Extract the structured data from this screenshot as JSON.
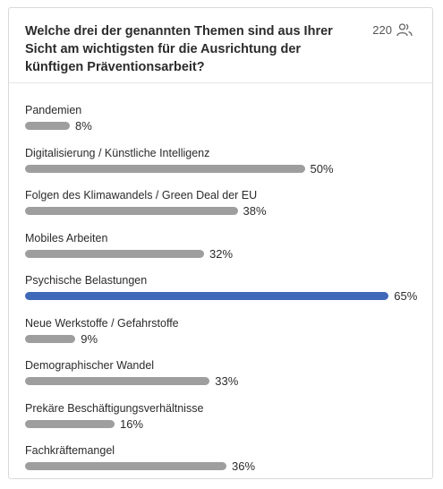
{
  "poll": {
    "question": "Welche drei der genannten Themen sind aus Ihrer Sicht am wichtigsten für die Ausrichtung der künftigen Präventionsarbeit?",
    "respondent_count": "220",
    "count_icon": "people-icon"
  },
  "colors": {
    "bar_default": "#9e9e9e",
    "bar_highlight": "#3f69b8"
  },
  "chart_data": {
    "type": "bar",
    "orientation": "horizontal",
    "categories": [
      "Pandemien",
      "Digitalisierung / Künstliche Intelligenz",
      "Folgen des Klimawandels / Green Deal der EU",
      "Mobiles Arbeiten",
      "Psychische Belastungen",
      "Neue Werkstoffe / Gefahrstoffe",
      "Demographischer Wandel",
      "Prekäre Beschäftigungsverhältnisse",
      "Fachkräftemangel"
    ],
    "values": [
      8,
      50,
      38,
      32,
      65,
      9,
      33,
      16,
      36
    ],
    "value_labels": [
      "8%",
      "50%",
      "38%",
      "32%",
      "65%",
      "9%",
      "33%",
      "16%",
      "36%"
    ],
    "highlighted_index": 4,
    "unit": "%"
  }
}
